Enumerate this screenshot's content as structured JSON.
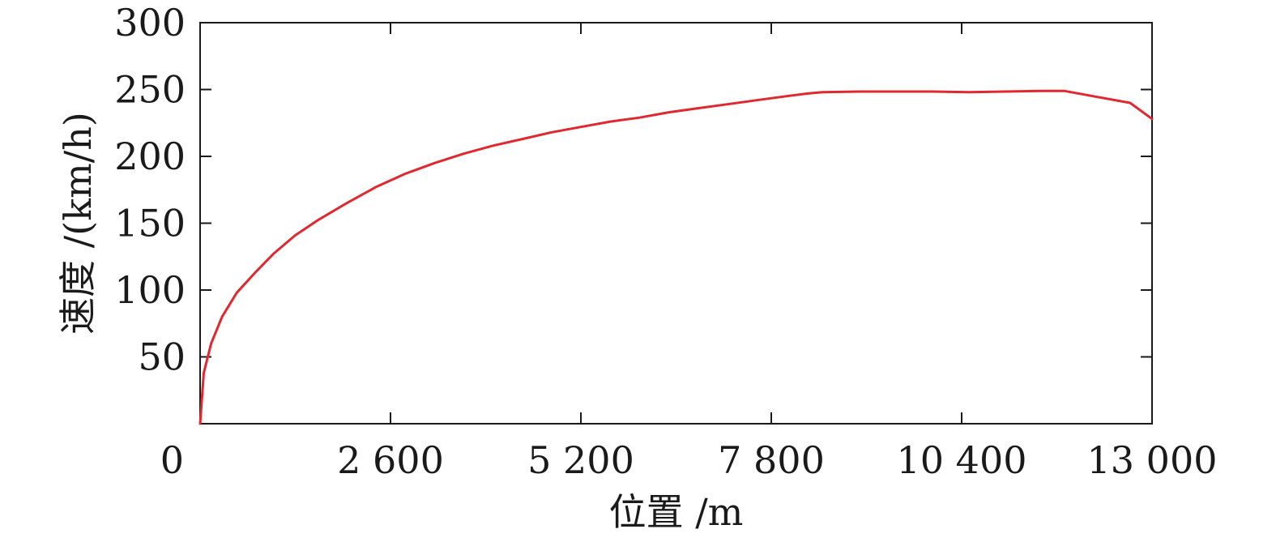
{
  "chart_data": {
    "type": "line",
    "title": "",
    "xlabel": "位置 /m",
    "ylabel": "速度 /(km/h)",
    "xlim": [
      0,
      13000
    ],
    "ylim": [
      0,
      300
    ],
    "x_ticks": [
      0,
      2600,
      5200,
      7800,
      10400,
      13000
    ],
    "x_tick_labels": [
      "0",
      "2 600",
      "5 200",
      "7 800",
      "10 400",
      "13 000"
    ],
    "y_ticks": [
      50,
      100,
      150,
      200,
      250,
      300
    ],
    "y_tick_labels": [
      "50",
      "100",
      "150",
      "200",
      "250",
      "300"
    ],
    "grid": false,
    "legend": "none",
    "series": [
      {
        "color": "#e0282e",
        "x": [
          0,
          50,
          150,
          300,
          500,
          750,
          1000,
          1300,
          1600,
          2000,
          2400,
          2800,
          3200,
          3600,
          4000,
          4400,
          4800,
          5200,
          5600,
          6000,
          6400,
          6800,
          7200,
          7600,
          8000,
          8300,
          8500,
          9000,
          9500,
          10000,
          10500,
          11000,
          11500,
          11800,
          12200,
          12700,
          13000
        ],
        "y": [
          0,
          38,
          60,
          80,
          98,
          113,
          127,
          141,
          152,
          165,
          177,
          187,
          195,
          202,
          208,
          213,
          218,
          222,
          226,
          229,
          233,
          236,
          239,
          242,
          245,
          247,
          248,
          248.5,
          248.5,
          248.5,
          248,
          248.5,
          249,
          249,
          245,
          240,
          228
        ]
      }
    ]
  }
}
